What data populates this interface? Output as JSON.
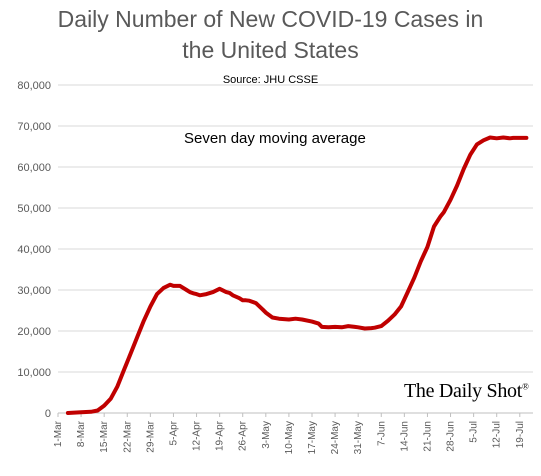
{
  "chart_data": {
    "type": "line",
    "title_line1": "Daily Number of New COVID-19 Cases in",
    "title_line2": "the United States",
    "subtitle": "Source: JHU CSSE",
    "annotation": "Seven day moving average",
    "brand": "The Daily Shot",
    "brand_mark": "®",
    "xlabel": "",
    "ylabel": "",
    "ylim": [
      0,
      80000
    ],
    "yticks": [
      0,
      10000,
      20000,
      30000,
      40000,
      50000,
      60000,
      70000,
      80000
    ],
    "ytick_labels": [
      "0",
      "10,000",
      "20,000",
      "30,000",
      "40,000",
      "50,000",
      "60,000",
      "70,000",
      "80,000"
    ],
    "xticks": [
      0,
      7,
      14,
      21,
      28,
      35,
      42,
      49,
      56,
      63,
      70,
      77,
      84,
      91,
      98,
      105,
      112,
      119,
      126,
      133,
      140
    ],
    "xtick_labels": [
      "1-Mar",
      "8-Mar",
      "15-Mar",
      "22-Mar",
      "29-Mar",
      "5-Apr",
      "12-Apr",
      "19-Apr",
      "26-Apr",
      "3-May",
      "10-May",
      "17-May",
      "24-May",
      "31-May",
      "7-Jun",
      "14-Jun",
      "21-Jun",
      "28-Jun",
      "5-Jul",
      "12-Jul",
      "19-Jul"
    ],
    "xlim": [
      0,
      144
    ],
    "grid": true,
    "series": [
      {
        "color": "#c00000",
        "x": [
          3,
          7,
          10,
          12,
          14,
          16,
          18,
          20,
          22,
          24,
          26,
          28,
          30,
          32,
          34,
          35,
          37,
          39,
          40,
          41,
          42,
          43,
          45,
          47,
          49,
          51,
          52,
          53,
          55,
          56,
          57,
          58,
          60,
          62,
          63,
          65,
          67,
          70,
          72,
          74,
          77,
          79,
          80,
          82,
          84,
          86,
          88,
          90,
          91,
          93,
          95,
          96,
          98,
          100,
          102,
          104,
          106,
          108,
          110,
          112,
          114,
          116,
          117,
          119,
          121,
          123,
          125,
          127,
          129,
          131,
          133,
          135,
          137,
          138,
          140,
          141,
          142
        ],
        "y": [
          0,
          200,
          300,
          600,
          1800,
          3500,
          6500,
          10500,
          14500,
          18500,
          22500,
          26000,
          29000,
          30500,
          31300,
          31000,
          31000,
          30000,
          29500,
          29200,
          29000,
          28700,
          29000,
          29500,
          30300,
          29500,
          29300,
          28700,
          28000,
          27500,
          27500,
          27400,
          26800,
          25300,
          24500,
          23300,
          23000,
          22800,
          23000,
          22800,
          22300,
          21800,
          21000,
          20900,
          21000,
          20900,
          21200,
          21000,
          20900,
          20600,
          20700,
          20800,
          21200,
          22500,
          24000,
          26000,
          29500,
          33000,
          37000,
          40500,
          45500,
          48000,
          49000,
          52000,
          55500,
          59500,
          63000,
          65500,
          66500,
          67200,
          67000,
          67200,
          67000,
          67100,
          67100,
          67100,
          67100
        ]
      }
    ]
  }
}
